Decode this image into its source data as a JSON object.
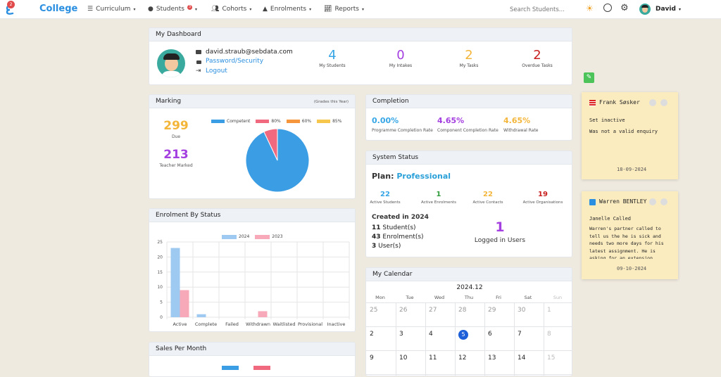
{
  "nav": {
    "badge": "2",
    "brand": "College",
    "items": [
      {
        "label": "Curriculum"
      },
      {
        "label": "Students",
        "badge": "3"
      },
      {
        "label": "Cohorts"
      },
      {
        "label": "Enrolments"
      },
      {
        "label": "Reports"
      }
    ],
    "search_placeholder": "Search Students...",
    "user": "David"
  },
  "dashboard": {
    "title": "My Dashboard",
    "email": "david.straub@sebdata.com",
    "password_link": "Password/Security",
    "logout_link": "Logout",
    "stats": [
      {
        "value": "4",
        "label": "My Students",
        "color": "#37a6e6"
      },
      {
        "value": "0",
        "label": "My Intakes",
        "color": "#a43fe0"
      },
      {
        "value": "2",
        "label": "My Tasks",
        "color": "#f3b63a"
      },
      {
        "value": "2",
        "label": "Overdue Tasks",
        "color": "#c8201e"
      }
    ]
  },
  "marking": {
    "title": "Marking",
    "period": "(Grades this Year)",
    "due_value": "299",
    "due_label": "Due",
    "marked_value": "213",
    "marked_label": "Teacher Marked"
  },
  "marking_chart": {
    "type": "pie",
    "legend": [
      {
        "name": "Competent",
        "color": "#3b9de3"
      },
      {
        "name": "80%",
        "color": "#f0697f"
      },
      {
        "name": "60%",
        "color": "#f6963c"
      },
      {
        "name": "85%",
        "color": "#f7c74d"
      }
    ],
    "values": [
      93,
      7,
      0,
      0
    ]
  },
  "completion": {
    "title": "Completion",
    "items": [
      {
        "value": "0.00%",
        "label": "Programme Completion Rate",
        "color": "#37a6e6"
      },
      {
        "value": "4.65%",
        "label": "Component Completion Rate",
        "color": "#a43fe0"
      },
      {
        "value": "4.65%",
        "label": "Withdrawal Rate",
        "color": "#f3b63a"
      }
    ]
  },
  "system": {
    "title": "System Status",
    "plan_label": "Plan:",
    "plan_value": "Professional",
    "stats": [
      {
        "value": "22",
        "label": "Active Students",
        "color": "#37a6e6"
      },
      {
        "value": "1",
        "label": "Active Enrolments",
        "color": "#2e9b3b"
      },
      {
        "value": "22",
        "label": "Active Contacts",
        "color": "#f3b63a"
      },
      {
        "value": "19",
        "label": "Active Organisations",
        "color": "#c8201e"
      }
    ],
    "created_title": "Created in 2024",
    "created": [
      {
        "count": "11",
        "label": "Student(s)"
      },
      {
        "count": "43",
        "label": "Enrolment(s)"
      },
      {
        "count": "3",
        "label": "User(s)"
      }
    ],
    "logged_value": "1",
    "logged_label": "Logged in Users"
  },
  "enrolment": {
    "title": "Enrolment By Status"
  },
  "chart_data": {
    "type": "bar",
    "categories": [
      "Active",
      "Complete",
      "Failed",
      "Withdrawn",
      "Waitlisted",
      "Provisional",
      "Inactive"
    ],
    "series": [
      {
        "name": "2024",
        "color": "#9ec9f0",
        "values": [
          23,
          1,
          0,
          0,
          0,
          0,
          0
        ]
      },
      {
        "name": "2023",
        "color": "#f8a9b9",
        "values": [
          9,
          0,
          0,
          2,
          0,
          0,
          0
        ]
      }
    ],
    "ylim": [
      0,
      25
    ],
    "yticks": [
      0,
      5,
      10,
      15,
      20,
      25
    ]
  },
  "sales": {
    "title": "Sales Per Month"
  },
  "calendar": {
    "title": "My Calendar",
    "month": "2024.12",
    "days": [
      "Mon",
      "Tue",
      "Wed",
      "Thu",
      "Fri",
      "Sat",
      "Sun"
    ],
    "weeks": [
      [
        "25",
        "26",
        "27",
        "28",
        "29",
        "30",
        "1"
      ],
      [
        "2",
        "3",
        "4",
        "5",
        "6",
        "7",
        "8"
      ],
      [
        "9",
        "10",
        "11",
        "12",
        "13",
        "14",
        "15"
      ]
    ],
    "today": "5"
  },
  "notes": [
    {
      "name": "Frank Søsker",
      "subject": "Set inactive",
      "body": "Was not a valid enquiry",
      "date": "18-09-2024"
    },
    {
      "name": "Warren BENTLEY",
      "subject": "Janelle Called",
      "body": "Warren's partner called to tell us the he is sick and needs two more days for his latest assignment. He is asking for an extension. Please advise",
      "date": "09-10-2024"
    }
  ]
}
